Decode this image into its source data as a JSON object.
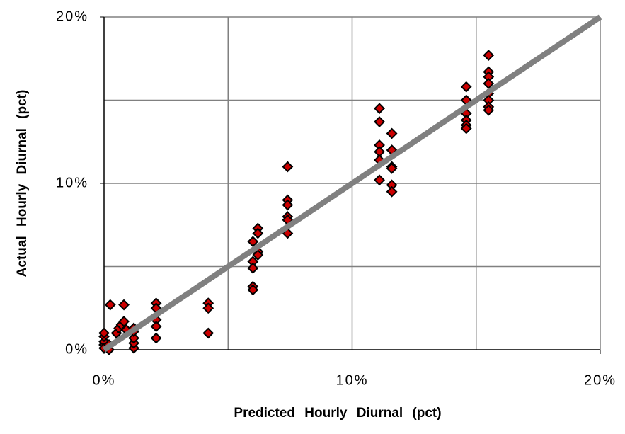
{
  "chart_data": {
    "type": "scatter",
    "x_label": "Predicted Hourly Diurnal (pct)",
    "y_label": "Actual Hourly Diurnal (pct)",
    "xlim": [
      0,
      20
    ],
    "ylim": [
      0,
      20
    ],
    "xticks": [
      {
        "value": 0,
        "label": "0%"
      },
      {
        "value": 10,
        "label": "10%"
      },
      {
        "value": 20,
        "label": "20%"
      }
    ],
    "yticks": [
      {
        "value": 0,
        "label": "0%"
      },
      {
        "value": 10,
        "label": "10%"
      },
      {
        "value": 20,
        "label": "20%"
      }
    ],
    "xgrid": [
      5,
      10,
      15,
      20
    ],
    "ygrid": [
      5,
      10,
      15,
      20
    ],
    "grid_color": "#808080",
    "series": [
      {
        "color": "#cc0000",
        "x": [
          0,
          0,
          0,
          0,
          0,
          0.2,
          0.2,
          0.25,
          0.5,
          0.6,
          0.7,
          0.8,
          0.8,
          0.9,
          1.2,
          1.2,
          1.2,
          1.2,
          1.2,
          2.1,
          2.1,
          2.1,
          2.1,
          2.1,
          4.2,
          4.2,
          4.2,
          6.0,
          6.0,
          6.0,
          6.0,
          6.0,
          6.2,
          6.2,
          6.2,
          6.2,
          7.4,
          7.4,
          7.4,
          7.4,
          7.4,
          7.4,
          11.1,
          11.1,
          11.1,
          11.1,
          11.1,
          11.1,
          11.6,
          11.6,
          11.6,
          11.6,
          11.6,
          11.6,
          14.6,
          14.6,
          14.6,
          14.6,
          14.6,
          14.6,
          15.5,
          15.5,
          15.5,
          15.5,
          15.5,
          15.5,
          15.5,
          15.5
        ],
        "y": [
          0.3,
          0.5,
          0.8,
          1.0,
          0.1,
          0.0,
          0.3,
          2.7,
          1.0,
          1.3,
          1.5,
          1.7,
          2.7,
          1.2,
          0.1,
          0.4,
          0.7,
          1.1,
          1.3,
          2.8,
          2.5,
          1.8,
          1.4,
          0.7,
          2.8,
          2.5,
          1.0,
          6.5,
          5.3,
          4.9,
          3.8,
          3.6,
          7.3,
          7.0,
          5.9,
          5.7,
          11.0,
          9.0,
          8.7,
          8.0,
          7.8,
          7.0,
          14.5,
          13.7,
          12.3,
          11.9,
          11.4,
          10.2,
          13.0,
          12.0,
          11.0,
          10.9,
          9.9,
          9.5,
          15.8,
          15.0,
          14.2,
          13.8,
          13.5,
          13.3,
          17.7,
          16.7,
          16.4,
          16.0,
          15.4,
          15.0,
          14.6,
          14.4
        ]
      }
    ],
    "reference_line": {
      "x": [
        0,
        20
      ],
      "y": [
        0,
        20
      ],
      "color": "#808080"
    }
  }
}
